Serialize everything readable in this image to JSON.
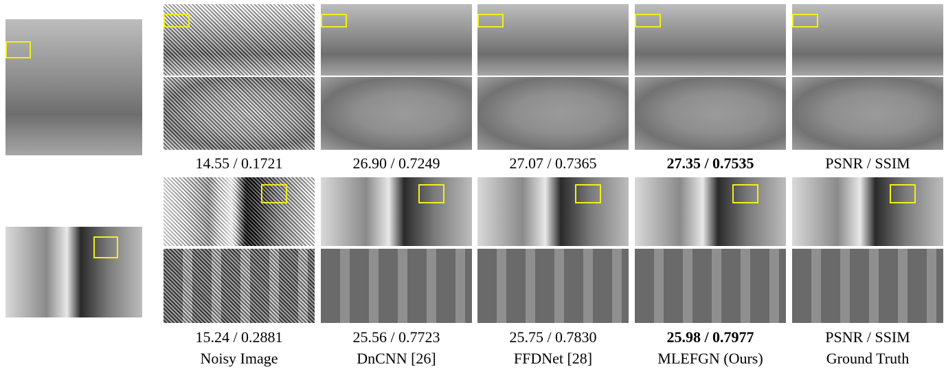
{
  "rows": [
    {
      "metrics": [
        "14.55 / 0.1721",
        "26.90 / 0.7249",
        "27.07 / 0.7365",
        "27.35 / 0.7535",
        "PSNR / SSIM"
      ]
    },
    {
      "metrics": [
        "15.24 / 0.2881",
        "25.56 / 0.7723",
        "25.75 / 0.7830",
        "25.98 / 0.7977",
        "PSNR / SSIM"
      ]
    }
  ],
  "methods": [
    "Noisy Image",
    "DnCNN [26]",
    "FFDNet [28]",
    "MLEFGN (Ours)",
    "Ground Truth"
  ]
}
